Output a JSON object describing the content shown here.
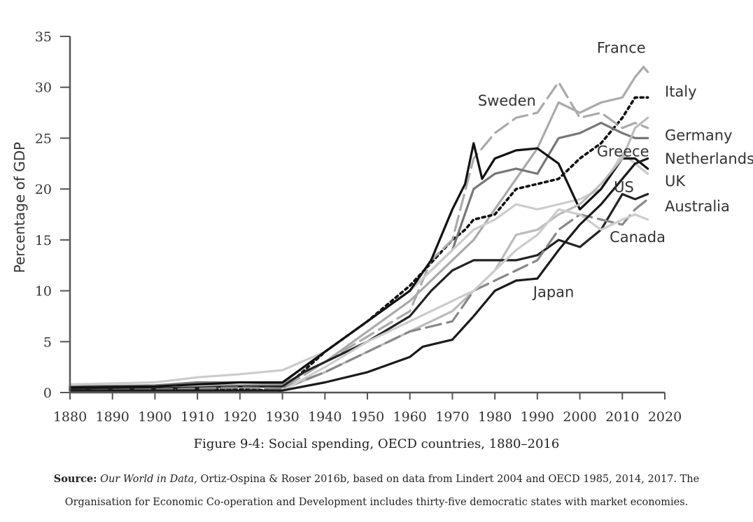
{
  "figure_caption": "Figure 9-4: Social spending, OECD countries, 1880–2016",
  "source": {
    "label": "Source:",
    "title": "Our World in Data,",
    "text": " Ortiz-Ospina & Roser 2016b, based on data from Lindert 2004 and OECD 1985, 2014, 2017. The Organisation for Economic Co-operation and Development includes thirty-five democratic states with market economies."
  },
  "chart_data": {
    "type": "line",
    "title": "",
    "xlabel": "",
    "ylabel": "Percentage of GDP",
    "xlim": [
      1880,
      2020
    ],
    "ylim": [
      0,
      35
    ],
    "xticks": [
      1880,
      1890,
      1900,
      1910,
      1920,
      1930,
      1940,
      1950,
      1960,
      1970,
      1980,
      1990,
      2000,
      2010,
      2020
    ],
    "yticks": [
      0,
      5,
      10,
      15,
      20,
      25,
      30,
      35
    ],
    "grid": false,
    "legend": "none",
    "series": [
      {
        "name": "France",
        "color": "#aaaaaa",
        "dash": "solid",
        "points": [
          [
            1880,
            0.5
          ],
          [
            1900,
            0.6
          ],
          [
            1910,
            0.8
          ],
          [
            1920,
            0.7
          ],
          [
            1930,
            0.8
          ],
          [
            1940,
            3
          ],
          [
            1950,
            6
          ],
          [
            1960,
            9
          ],
          [
            1970,
            13
          ],
          [
            1975,
            15
          ],
          [
            1980,
            18
          ],
          [
            1985,
            21
          ],
          [
            1990,
            24
          ],
          [
            1995,
            28.5
          ],
          [
            2000,
            27.5
          ],
          [
            2005,
            28.5
          ],
          [
            2010,
            29
          ],
          [
            2013,
            31
          ],
          [
            2015,
            32
          ],
          [
            2016,
            31.5
          ]
        ]
      },
      {
        "name": "Italy",
        "color": "#111111",
        "dash": "dot",
        "points": [
          [
            1880,
            0.3
          ],
          [
            1900,
            0.3
          ],
          [
            1910,
            0.3
          ],
          [
            1920,
            0.3
          ],
          [
            1930,
            0.2
          ],
          [
            1932,
            1
          ],
          [
            1940,
            4
          ],
          [
            1950,
            7
          ],
          [
            1960,
            10.5
          ],
          [
            1970,
            15
          ],
          [
            1973,
            16
          ],
          [
            1975,
            17
          ],
          [
            1980,
            17.5
          ],
          [
            1985,
            20
          ],
          [
            1990,
            20.5
          ],
          [
            1995,
            21
          ],
          [
            2000,
            23
          ],
          [
            2005,
            24.5
          ],
          [
            2010,
            27
          ],
          [
            2013,
            29
          ],
          [
            2016,
            29
          ]
        ]
      },
      {
        "name": "Germany",
        "color": "#777777",
        "dash": "solid",
        "points": [
          [
            1880,
            0.6
          ],
          [
            1900,
            0.7
          ],
          [
            1910,
            1
          ],
          [
            1920,
            1
          ],
          [
            1930,
            0.9
          ],
          [
            1935,
            2.5
          ],
          [
            1940,
            4
          ],
          [
            1950,
            7
          ],
          [
            1960,
            10
          ],
          [
            1970,
            14
          ],
          [
            1975,
            20
          ],
          [
            1980,
            21.5
          ],
          [
            1985,
            22
          ],
          [
            1990,
            21.5
          ],
          [
            1995,
            25
          ],
          [
            2000,
            25.5
          ],
          [
            2005,
            26.5
          ],
          [
            2010,
            25.5
          ],
          [
            2013,
            25
          ],
          [
            2016,
            25
          ]
        ]
      },
      {
        "name": "Netherlands",
        "color": "#aaaaaa",
        "dash": "dash",
        "points": [
          [
            1880,
            0.3
          ],
          [
            1900,
            0.4
          ],
          [
            1910,
            0.4
          ],
          [
            1920,
            0.5
          ],
          [
            1930,
            0.4
          ],
          [
            1940,
            3
          ],
          [
            1950,
            5.5
          ],
          [
            1960,
            8
          ],
          [
            1965,
            13
          ],
          [
            1970,
            15
          ],
          [
            1975,
            23
          ],
          [
            1980,
            25.5
          ],
          [
            1985,
            27
          ],
          [
            1990,
            27.5
          ],
          [
            1995,
            30.5
          ],
          [
            2000,
            27
          ],
          [
            2005,
            27.5
          ],
          [
            2010,
            26
          ],
          [
            2013,
            26.5
          ],
          [
            2016,
            26
          ]
        ]
      },
      {
        "name": "UK",
        "color": "#cccccc",
        "dash": "solid",
        "points": [
          [
            1880,
            0.8
          ],
          [
            1900,
            1
          ],
          [
            1910,
            1.5
          ],
          [
            1920,
            1.8
          ],
          [
            1930,
            2.2
          ],
          [
            1940,
            4
          ],
          [
            1950,
            7
          ],
          [
            1960,
            10
          ],
          [
            1965,
            12
          ],
          [
            1970,
            14
          ],
          [
            1975,
            16
          ],
          [
            1980,
            17
          ],
          [
            1985,
            18.5
          ],
          [
            1990,
            18
          ],
          [
            1995,
            18.5
          ],
          [
            2000,
            19
          ],
          [
            2005,
            20
          ],
          [
            2010,
            23.5
          ],
          [
            2013,
            22.5
          ],
          [
            2016,
            21.5
          ]
        ]
      },
      {
        "name": "Sweden",
        "color": "#111111",
        "dash": "solid",
        "points": [
          [
            1880,
            0.5
          ],
          [
            1900,
            0.6
          ],
          [
            1910,
            0.8
          ],
          [
            1920,
            1
          ],
          [
            1930,
            1
          ],
          [
            1940,
            4
          ],
          [
            1950,
            7
          ],
          [
            1960,
            10
          ],
          [
            1965,
            13
          ],
          [
            1970,
            18
          ],
          [
            1973,
            20.5
          ],
          [
            1975,
            24.5
          ],
          [
            1977,
            21
          ],
          [
            1980,
            23
          ],
          [
            1985,
            23.8
          ],
          [
            1990,
            24
          ],
          [
            1995,
            22.5
          ],
          [
            2000,
            18
          ],
          [
            2005,
            20
          ],
          [
            2010,
            23
          ],
          [
            2013,
            23
          ],
          [
            2016,
            22
          ]
        ]
      },
      {
        "name": "Greece",
        "color": "#bbbbbb",
        "dash": "solid",
        "points": [
          [
            1930,
            0.3
          ],
          [
            1940,
            2
          ],
          [
            1950,
            4
          ],
          [
            1960,
            6
          ],
          [
            1965,
            7
          ],
          [
            1970,
            8
          ],
          [
            1975,
            10
          ],
          [
            1980,
            12
          ],
          [
            1985,
            15.5
          ],
          [
            1990,
            16
          ],
          [
            1995,
            17.5
          ],
          [
            2000,
            18.5
          ],
          [
            2005,
            20.5
          ],
          [
            2010,
            23
          ],
          [
            2013,
            26
          ],
          [
            2016,
            27
          ]
        ]
      },
      {
        "name": "US",
        "color": "#222222",
        "dash": "solid",
        "points": [
          [
            1880,
            0.3
          ],
          [
            1900,
            0.4
          ],
          [
            1910,
            0.5
          ],
          [
            1920,
            0.6
          ],
          [
            1930,
            0.6
          ],
          [
            1935,
            2
          ],
          [
            1940,
            3
          ],
          [
            1950,
            5
          ],
          [
            1960,
            7.5
          ],
          [
            1965,
            10
          ],
          [
            1970,
            12
          ],
          [
            1975,
            13
          ],
          [
            1980,
            13
          ],
          [
            1985,
            13
          ],
          [
            1990,
            13.5
          ],
          [
            1995,
            15
          ],
          [
            2000,
            14.3
          ],
          [
            2005,
            16
          ],
          [
            2010,
            19.5
          ],
          [
            2013,
            19
          ],
          [
            2016,
            19.5
          ]
        ]
      },
      {
        "name": "Australia",
        "color": "#888888",
        "dash": "dash",
        "points": [
          [
            1880,
            0.2
          ],
          [
            1900,
            0.3
          ],
          [
            1910,
            0.4
          ],
          [
            1920,
            0.5
          ],
          [
            1930,
            0.4
          ],
          [
            1940,
            2
          ],
          [
            1950,
            4
          ],
          [
            1960,
            6
          ],
          [
            1965,
            6.5
          ],
          [
            1970,
            7
          ],
          [
            1975,
            10
          ],
          [
            1980,
            11
          ],
          [
            1985,
            12
          ],
          [
            1990,
            13
          ],
          [
            1995,
            16
          ],
          [
            2000,
            17.5
          ],
          [
            2005,
            17
          ],
          [
            2010,
            16.5
          ],
          [
            2013,
            18
          ],
          [
            2016,
            19
          ]
        ]
      },
      {
        "name": "Canada",
        "color": "#cccccc",
        "dash": "solid",
        "points": [
          [
            1930,
            0.2
          ],
          [
            1940,
            2.5
          ],
          [
            1950,
            5
          ],
          [
            1960,
            7
          ],
          [
            1965,
            8
          ],
          [
            1970,
            9
          ],
          [
            1975,
            10
          ],
          [
            1980,
            12
          ],
          [
            1985,
            14
          ],
          [
            1990,
            15.5
          ],
          [
            1995,
            18
          ],
          [
            2000,
            17.5
          ],
          [
            2005,
            16
          ],
          [
            2010,
            17
          ],
          [
            2013,
            17.5
          ],
          [
            2016,
            17
          ]
        ]
      },
      {
        "name": "Japan",
        "color": "#1a1a1a",
        "dash": "solid",
        "points": [
          [
            1880,
            0.2
          ],
          [
            1900,
            0.2
          ],
          [
            1910,
            0.2
          ],
          [
            1920,
            0.2
          ],
          [
            1930,
            0.2
          ],
          [
            1940,
            1
          ],
          [
            1950,
            2
          ],
          [
            1960,
            3.5
          ],
          [
            1963,
            4.5
          ],
          [
            1966,
            4.8
          ],
          [
            1970,
            5.2
          ],
          [
            1975,
            7.5
          ],
          [
            1980,
            10
          ],
          [
            1985,
            11
          ],
          [
            1990,
            11.2
          ],
          [
            1995,
            14
          ],
          [
            2000,
            16.5
          ],
          [
            2005,
            18.5
          ],
          [
            2010,
            21
          ],
          [
            2013,
            22.5
          ],
          [
            2016,
            23
          ]
        ]
      }
    ],
    "annotations": [
      {
        "text": "France",
        "x": 2004,
        "y": 33.4
      },
      {
        "text": "Italy",
        "x": 2020,
        "y": 29.1
      },
      {
        "text": "Sweden",
        "x": 1976,
        "y": 28.2
      },
      {
        "text": "Germany",
        "x": 2020,
        "y": 24.8
      },
      {
        "text": "Greece",
        "x": 2004,
        "y": 23.2
      },
      {
        "text": "Netherlands",
        "x": 2020,
        "y": 22.5
      },
      {
        "text": "UK",
        "x": 2020,
        "y": 20.3
      },
      {
        "text": "US",
        "x": 2008,
        "y": 19.7
      },
      {
        "text": "Australia",
        "x": 2020,
        "y": 17.8
      },
      {
        "text": "Canada",
        "x": 2007,
        "y": 14.8
      },
      {
        "text": "Japan",
        "x": 1989,
        "y": 9.4
      }
    ]
  }
}
